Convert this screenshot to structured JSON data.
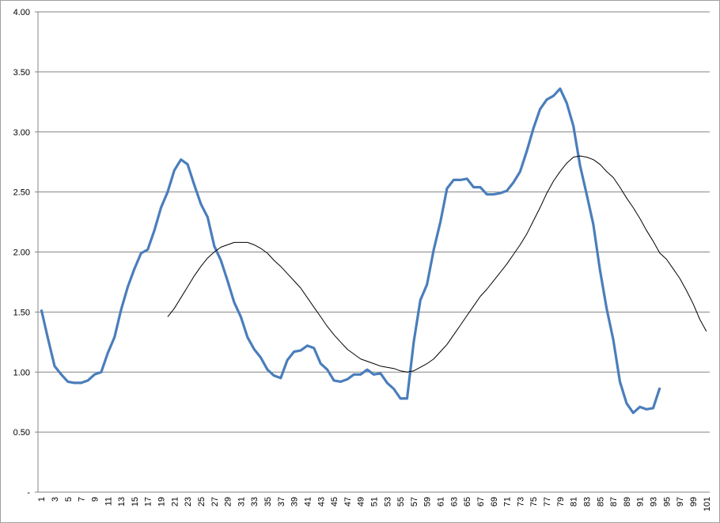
{
  "chart_data": {
    "type": "line",
    "categories": [
      1,
      null,
      3,
      null,
      5,
      null,
      7,
      null,
      9,
      null,
      11,
      null,
      13,
      null,
      15,
      null,
      17,
      null,
      19,
      null,
      21,
      null,
      23,
      null,
      25,
      null,
      27,
      null,
      29,
      null,
      31,
      null,
      33,
      null,
      35,
      null,
      37,
      null,
      39,
      null,
      41,
      null,
      43,
      null,
      45,
      null,
      47,
      null,
      49,
      null,
      51,
      null,
      53,
      null,
      55,
      null,
      57,
      null,
      59,
      null,
      61,
      null,
      63,
      null,
      65,
      null,
      67,
      null,
      69,
      null,
      71,
      null,
      73,
      null,
      75,
      null,
      77,
      null,
      79,
      null,
      81,
      null,
      83,
      null,
      85,
      null,
      87,
      null,
      89,
      null,
      91,
      null,
      93,
      null,
      95,
      null,
      97,
      null,
      99,
      null,
      101
    ],
    "series": [
      {
        "color": "#4a7ebb",
        "width": 3.2,
        "values": [
          1.52,
          1.28,
          1.05,
          0.98,
          0.92,
          0.91,
          0.91,
          0.93,
          0.98,
          1.0,
          1.16,
          1.29,
          1.52,
          1.71,
          1.86,
          1.99,
          2.02,
          2.18,
          2.37,
          2.5,
          2.68,
          2.77,
          2.73,
          2.56,
          2.4,
          2.29,
          2.05,
          1.93,
          1.76,
          1.58,
          1.46,
          1.29,
          1.19,
          1.12,
          1.02,
          0.97,
          0.95,
          1.1,
          1.17,
          1.18,
          1.22,
          1.2,
          1.07,
          1.02,
          0.93,
          0.92,
          0.94,
          0.98,
          0.98,
          1.02,
          0.98,
          0.99,
          0.91,
          0.86,
          0.78,
          0.78,
          1.25,
          1.6,
          1.73,
          2.02,
          2.25,
          2.53,
          2.6,
          2.6,
          2.61,
          2.54,
          2.54,
          2.48,
          2.48,
          2.49,
          2.51,
          2.58,
          2.67,
          2.84,
          3.03,
          3.19,
          3.27,
          3.3,
          3.36,
          3.24,
          3.05,
          2.72,
          2.48,
          2.23,
          1.85,
          1.53,
          1.27,
          0.92,
          0.74,
          0.66,
          0.71,
          0.69,
          0.7,
          0.87,
          null,
          null,
          null,
          null,
          null,
          null,
          null
        ]
      },
      {
        "color": "#000000",
        "width": 1,
        "values": [
          null,
          null,
          null,
          null,
          null,
          null,
          null,
          null,
          null,
          null,
          null,
          null,
          null,
          null,
          null,
          null,
          null,
          null,
          null,
          1.46,
          1.53,
          1.62,
          1.71,
          1.8,
          1.88,
          1.95,
          2.0,
          2.04,
          2.06,
          2.08,
          2.08,
          2.08,
          2.06,
          2.03,
          1.99,
          1.93,
          1.88,
          1.82,
          1.76,
          1.7,
          1.62,
          1.54,
          1.46,
          1.38,
          1.31,
          1.25,
          1.19,
          1.15,
          1.11,
          1.09,
          1.07,
          1.05,
          1.04,
          1.03,
          1.01,
          1.0,
          1.01,
          1.04,
          1.07,
          1.11,
          1.17,
          1.23,
          1.31,
          1.39,
          1.47,
          1.55,
          1.63,
          1.69,
          1.76,
          1.83,
          1.9,
          1.98,
          2.06,
          2.15,
          2.26,
          2.37,
          2.49,
          2.59,
          2.67,
          2.74,
          2.79,
          2.8,
          2.79,
          2.77,
          2.73,
          2.67,
          2.62,
          2.54,
          2.45,
          2.37,
          2.28,
          2.18,
          2.09,
          1.99,
          1.94,
          1.86,
          1.78,
          1.68,
          1.57,
          1.44,
          1.34
        ]
      }
    ],
    "ylim": [
      0,
      4
    ],
    "yticks": [
      {
        "value": 0,
        "label": "-"
      },
      {
        "value": 0.5,
        "label": "0.50"
      },
      {
        "value": 1,
        "label": "1.00"
      },
      {
        "value": 1.5,
        "label": "1.50"
      },
      {
        "value": 2,
        "label": "2.00"
      },
      {
        "value": 2.5,
        "label": "2.50"
      },
      {
        "value": 3,
        "label": "3.00"
      },
      {
        "value": 3.5,
        "label": "3.50"
      },
      {
        "value": 4,
        "label": "4.00"
      }
    ],
    "grid": true
  }
}
